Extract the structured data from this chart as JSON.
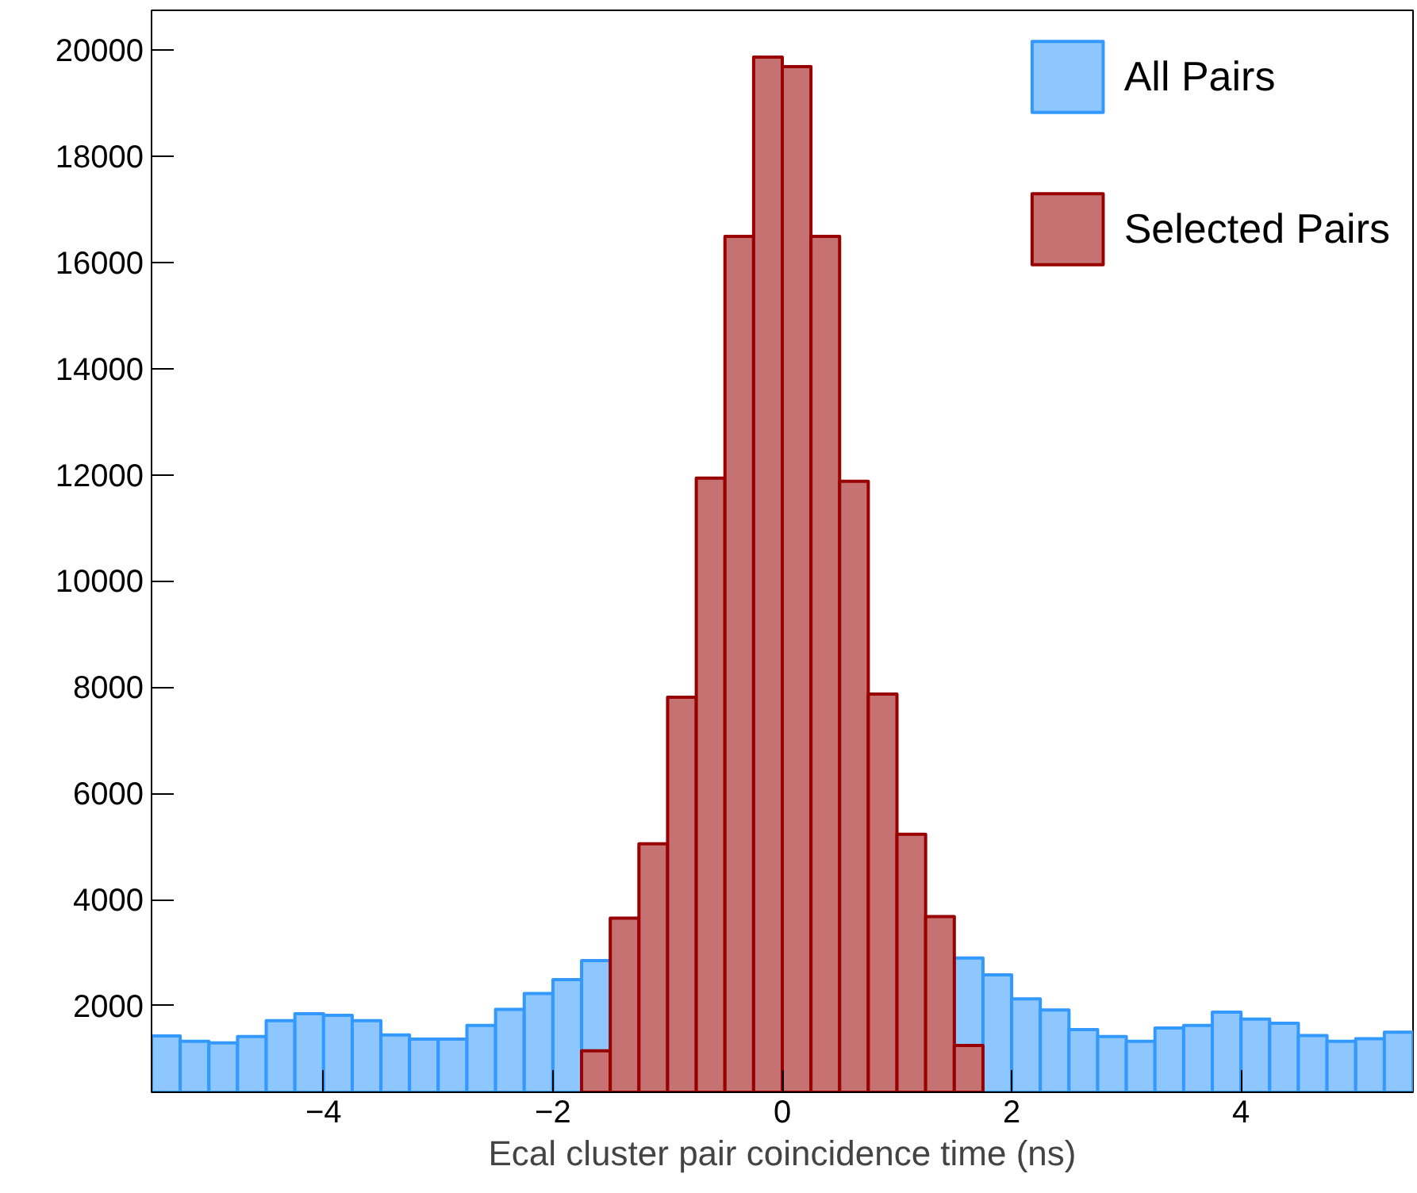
{
  "chart_data": {
    "type": "histogram",
    "xlabel": "Ecal cluster pair coincidence time (ns)",
    "bins": [
      -5.5,
      -5.25,
      -5.0,
      -4.75,
      -4.5,
      -4.25,
      -4.0,
      -3.75,
      -3.5,
      -3.25,
      -3.0,
      -2.75,
      -2.5,
      -2.25,
      -2.0,
      -1.75,
      -1.5,
      -1.25,
      -1.0,
      -0.75,
      -0.5,
      -0.25,
      0.0,
      0.25,
      0.5,
      0.75,
      1.0,
      1.25,
      1.5,
      1.75,
      2.0,
      2.25,
      2.5,
      2.75,
      3.0,
      3.25,
      3.5,
      3.75,
      4.0,
      4.25,
      4.5,
      4.75,
      5.0,
      5.25,
      5.5
    ],
    "series": [
      {
        "name": "All Pairs",
        "color": "#3399ff",
        "values": [
          1430,
          1330,
          1300,
          1420,
          1720,
          1850,
          1820,
          1720,
          1450,
          1370,
          1370,
          1630,
          1930,
          2230,
          2490,
          2850,
          null,
          null,
          null,
          null,
          null,
          null,
          null,
          null,
          null,
          null,
          null,
          null,
          2900,
          2580,
          2130,
          1920,
          1550,
          1420,
          1330,
          1580,
          1630,
          1880,
          1750,
          1670,
          1440,
          1330,
          1380,
          1500
        ]
      },
      {
        "name": "Selected Pairs",
        "color": "#990000",
        "values": [
          null,
          null,
          null,
          null,
          null,
          null,
          null,
          null,
          null,
          null,
          null,
          null,
          null,
          null,
          null,
          1150,
          3650,
          5050,
          7810,
          11940,
          16490,
          19870,
          19690,
          16490,
          11880,
          7870,
          5230,
          3680,
          1250,
          null,
          null,
          null,
          null,
          null,
          null,
          null,
          null,
          null,
          null,
          null,
          null,
          null,
          null,
          null
        ]
      }
    ],
    "xlim": [
      -5.5,
      5.5
    ],
    "ylim": [
      370,
      20750
    ],
    "xticks": [
      {
        "value": -4,
        "label": "−4"
      },
      {
        "value": -2,
        "label": "−2"
      },
      0,
      2,
      4
    ],
    "yticks": [
      2000,
      4000,
      6000,
      8000,
      10000,
      12000,
      14000,
      16000,
      18000,
      20000
    ],
    "grid": false,
    "legend": "top right"
  }
}
